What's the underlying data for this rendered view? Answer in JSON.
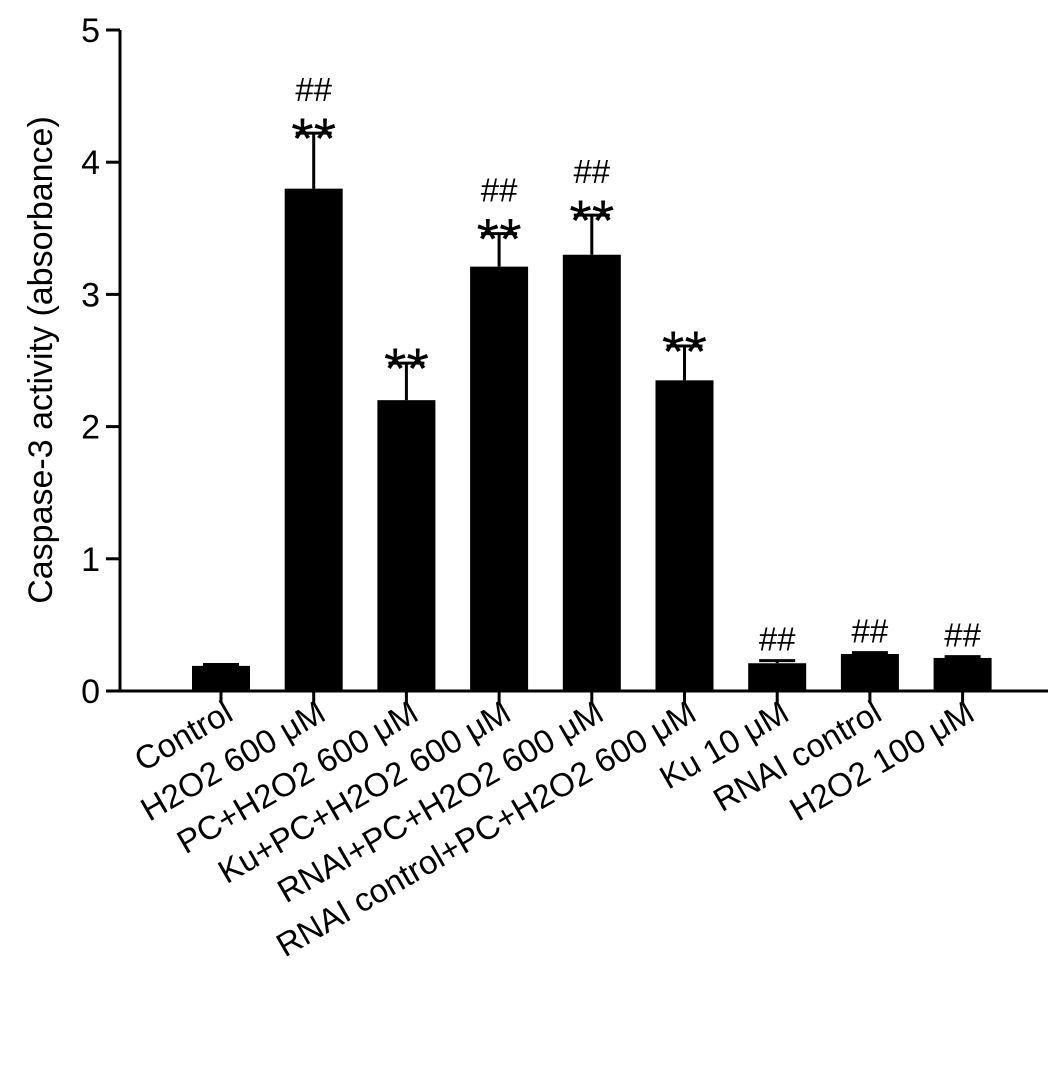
{
  "chart_data": {
    "type": "bar",
    "title": "",
    "xlabel": "",
    "ylabel": "Caspase-3 activity (absorbance)",
    "ylim": [
      0,
      5
    ],
    "yticks": [
      0,
      1,
      2,
      3,
      4,
      5
    ],
    "grid": false,
    "legend": "none",
    "bar_color": "#000000",
    "categories": [
      "Control",
      "H2O2 600 μM",
      "PC+H2O2 600 μM",
      "Ku+PC+H2O2 600 μM",
      "RNAI+PC+H2O2 600 μM",
      "RNAI control+PC+H2O2 600 μM",
      "Ku 10 μM",
      "RNAI control",
      "H2O2 100 μM"
    ],
    "values": [
      0.19,
      3.8,
      2.2,
      3.21,
      3.3,
      2.35,
      0.21,
      0.28,
      0.25
    ],
    "errors": [
      0.01,
      0.42,
      0.28,
      0.25,
      0.3,
      0.26,
      0.02,
      0.01,
      0.01
    ],
    "significance_star": [
      "",
      "**",
      "**",
      "**",
      "**",
      "**",
      "",
      "",
      ""
    ],
    "significance_hash": [
      "",
      "##",
      "",
      "##",
      "##",
      "",
      "##",
      "##",
      "##"
    ]
  }
}
